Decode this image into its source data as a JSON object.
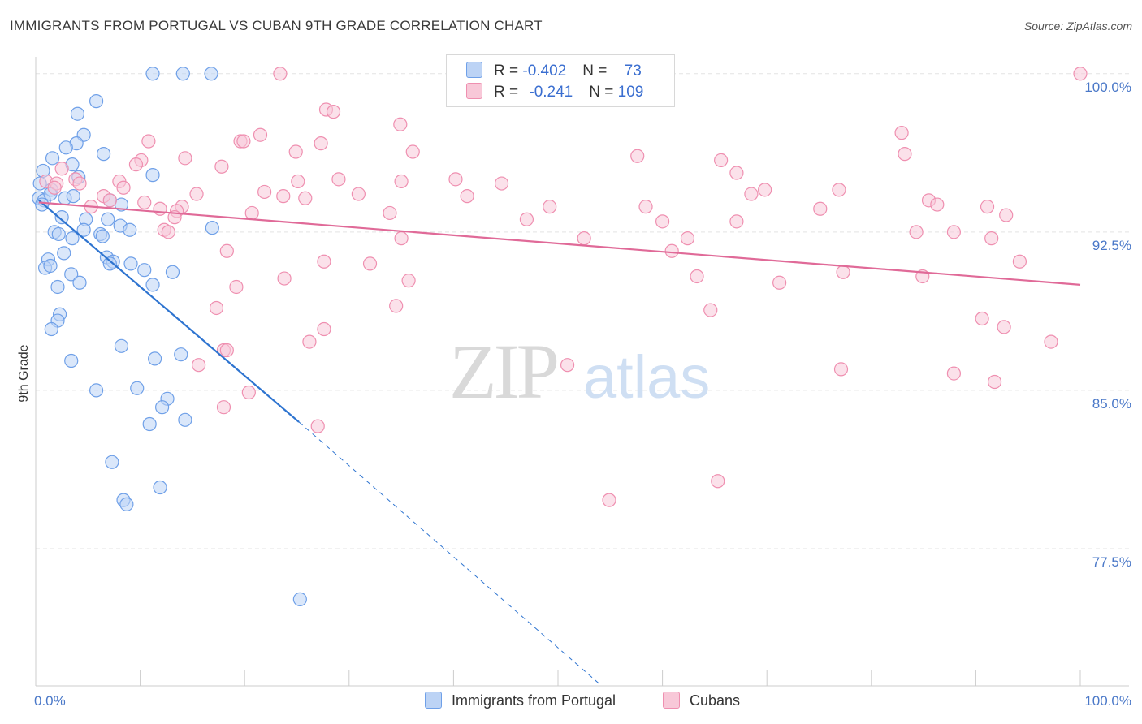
{
  "header": {
    "title": "IMMIGRANTS FROM PORTUGAL VS CUBAN 9TH GRADE CORRELATION CHART",
    "source": "Source: ZipAtlas.com"
  },
  "watermark": {
    "zip": "ZIP",
    "atlas": "atlas"
  },
  "legend": {
    "rows": [
      {
        "r_label": "R = ",
        "r_value": "-0.402",
        "n_label": "N = ",
        "n_value": "73",
        "color": "#6fa0e8",
        "fill": "#bcd3f5"
      },
      {
        "r_label": "R = ",
        "r_value": "-0.241",
        "n_label": "N = ",
        "n_value": "109",
        "color": "#ef8fb0",
        "fill": "#f8c8d8"
      }
    ]
  },
  "bottom_legend": [
    {
      "label": "Immigrants from Portugal",
      "fill": "#bcd3f5",
      "stroke": "#6fa0e8"
    },
    {
      "label": "Cubans",
      "fill": "#f8c8d8",
      "stroke": "#ef8fb0"
    }
  ],
  "chart_data": {
    "type": "scatter",
    "title": "IMMIGRANTS FROM PORTUGAL VS CUBAN 9TH GRADE CORRELATION CHART",
    "xlabel": "",
    "ylabel": "9th Grade",
    "xlim": [
      0,
      100
    ],
    "ylim": [
      71.0,
      100.8
    ],
    "x_tick_labels": [
      "0.0%",
      "100.0%"
    ],
    "y_ticks": [
      77.5,
      85.0,
      92.5,
      100.0
    ],
    "y_tick_labels": [
      "77.5%",
      "85.0%",
      "92.5%",
      "100.0%"
    ],
    "grid": true,
    "series": [
      {
        "name": "Immigrants from Portugal",
        "color": "#6fa0e8",
        "fill": "#bcd3f5",
        "trend": {
          "x0": 0.3,
          "y0": 94.0,
          "x1": 25.2,
          "y1": 83.5,
          "dash_x1": 56.5,
          "dash_y1": 70.0
        },
        "points": [
          [
            11.2,
            100.0
          ],
          [
            14.1,
            100.0
          ],
          [
            16.8,
            100.0
          ],
          [
            5.8,
            98.7
          ],
          [
            4.0,
            98.1
          ],
          [
            4.6,
            97.1
          ],
          [
            3.9,
            96.7
          ],
          [
            2.9,
            96.5
          ],
          [
            6.5,
            96.2
          ],
          [
            1.6,
            96.0
          ],
          [
            3.5,
            95.7
          ],
          [
            0.7,
            95.4
          ],
          [
            4.1,
            95.1
          ],
          [
            11.2,
            95.2
          ],
          [
            0.4,
            94.8
          ],
          [
            1.5,
            94.5
          ],
          [
            0.3,
            94.1
          ],
          [
            0.8,
            94.0
          ],
          [
            1.4,
            94.3
          ],
          [
            2.8,
            94.1
          ],
          [
            3.6,
            94.2
          ],
          [
            7.1,
            94.0
          ],
          [
            8.2,
            93.8
          ],
          [
            0.6,
            93.8
          ],
          [
            2.5,
            93.2
          ],
          [
            4.8,
            93.1
          ],
          [
            6.9,
            93.1
          ],
          [
            8.1,
            92.8
          ],
          [
            9.0,
            92.6
          ],
          [
            4.6,
            92.6
          ],
          [
            1.8,
            92.5
          ],
          [
            2.2,
            92.4
          ],
          [
            6.2,
            92.4
          ],
          [
            3.5,
            92.2
          ],
          [
            6.4,
            92.3
          ],
          [
            16.9,
            92.7
          ],
          [
            2.7,
            91.5
          ],
          [
            6.8,
            91.3
          ],
          [
            7.4,
            91.1
          ],
          [
            1.2,
            91.2
          ],
          [
            7.1,
            91.0
          ],
          [
            9.1,
            91.0
          ],
          [
            0.9,
            90.8
          ],
          [
            1.4,
            90.9
          ],
          [
            10.4,
            90.7
          ],
          [
            13.1,
            90.6
          ],
          [
            3.4,
            90.5
          ],
          [
            4.2,
            90.1
          ],
          [
            11.2,
            90.0
          ],
          [
            2.1,
            89.9
          ],
          [
            2.3,
            88.6
          ],
          [
            2.1,
            88.3
          ],
          [
            1.5,
            87.9
          ],
          [
            8.2,
            87.1
          ],
          [
            3.4,
            86.4
          ],
          [
            11.4,
            86.5
          ],
          [
            13.9,
            86.7
          ],
          [
            5.8,
            85.0
          ],
          [
            9.7,
            85.1
          ],
          [
            12.6,
            84.6
          ],
          [
            12.1,
            84.2
          ],
          [
            14.3,
            83.6
          ],
          [
            10.9,
            83.4
          ],
          [
            7.3,
            81.6
          ],
          [
            11.9,
            80.4
          ],
          [
            8.4,
            79.8
          ],
          [
            8.7,
            79.6
          ],
          [
            25.3,
            75.1
          ]
        ]
      },
      {
        "name": "Cubans",
        "color": "#ef8fb0",
        "fill": "#f8c8d8",
        "trend": {
          "x0": 0.3,
          "y0": 93.9,
          "x1": 100.0,
          "y1": 90.0
        },
        "points": [
          [
            23.4,
            100.0
          ],
          [
            100.0,
            100.0
          ],
          [
            27.8,
            98.3
          ],
          [
            28.5,
            98.2
          ],
          [
            34.9,
            97.6
          ],
          [
            82.9,
            97.2
          ],
          [
            21.5,
            97.1
          ],
          [
            10.8,
            96.8
          ],
          [
            19.6,
            96.8
          ],
          [
            19.9,
            96.8
          ],
          [
            27.3,
            96.7
          ],
          [
            24.9,
            96.3
          ],
          [
            36.1,
            96.3
          ],
          [
            83.2,
            96.2
          ],
          [
            14.3,
            96.0
          ],
          [
            10.1,
            95.9
          ],
          [
            9.6,
            95.7
          ],
          [
            17.8,
            95.6
          ],
          [
            57.6,
            96.1
          ],
          [
            65.6,
            95.9
          ],
          [
            2.5,
            95.5
          ],
          [
            29.0,
            95.0
          ],
          [
            40.2,
            95.0
          ],
          [
            67.1,
            95.3
          ],
          [
            3.8,
            95.0
          ],
          [
            1.0,
            94.9
          ],
          [
            8.0,
            94.9
          ],
          [
            8.4,
            94.6
          ],
          [
            25.1,
            94.9
          ],
          [
            35.0,
            94.9
          ],
          [
            44.6,
            94.8
          ],
          [
            2.0,
            94.8
          ],
          [
            4.2,
            94.8
          ],
          [
            1.8,
            94.6
          ],
          [
            21.9,
            94.4
          ],
          [
            30.9,
            94.3
          ],
          [
            68.5,
            94.3
          ],
          [
            69.8,
            94.5
          ],
          [
            76.9,
            94.5
          ],
          [
            15.4,
            94.3
          ],
          [
            23.7,
            94.2
          ],
          [
            41.3,
            94.2
          ],
          [
            25.8,
            94.1
          ],
          [
            85.5,
            94.0
          ],
          [
            6.5,
            94.2
          ],
          [
            10.4,
            93.9
          ],
          [
            7.1,
            94.0
          ],
          [
            5.3,
            93.7
          ],
          [
            14.0,
            93.7
          ],
          [
            13.5,
            93.5
          ],
          [
            86.3,
            93.8
          ],
          [
            49.2,
            93.7
          ],
          [
            58.4,
            93.7
          ],
          [
            75.1,
            93.6
          ],
          [
            11.9,
            93.6
          ],
          [
            20.7,
            93.4
          ],
          [
            33.9,
            93.4
          ],
          [
            91.1,
            93.7
          ],
          [
            92.9,
            93.3
          ],
          [
            47.0,
            93.1
          ],
          [
            60.0,
            93.0
          ],
          [
            67.1,
            93.0
          ],
          [
            13.3,
            93.2
          ],
          [
            12.3,
            92.6
          ],
          [
            12.7,
            92.5
          ],
          [
            84.3,
            92.5
          ],
          [
            87.9,
            92.5
          ],
          [
            35.0,
            92.2
          ],
          [
            91.5,
            92.2
          ],
          [
            52.5,
            92.2
          ],
          [
            62.4,
            92.2
          ],
          [
            18.3,
            91.6
          ],
          [
            60.9,
            91.6
          ],
          [
            27.6,
            91.1
          ],
          [
            32.0,
            91.0
          ],
          [
            94.2,
            91.1
          ],
          [
            77.3,
            90.6
          ],
          [
            63.3,
            90.4
          ],
          [
            84.9,
            90.4
          ],
          [
            23.8,
            90.3
          ],
          [
            35.7,
            90.2
          ],
          [
            71.2,
            90.1
          ],
          [
            19.2,
            89.9
          ],
          [
            34.5,
            89.0
          ],
          [
            17.3,
            88.9
          ],
          [
            64.6,
            88.8
          ],
          [
            90.6,
            88.4
          ],
          [
            92.7,
            88.0
          ],
          [
            27.6,
            87.9
          ],
          [
            26.2,
            87.3
          ],
          [
            97.2,
            87.3
          ],
          [
            18.0,
            86.9
          ],
          [
            18.3,
            86.9
          ],
          [
            15.6,
            86.2
          ],
          [
            50.9,
            86.2
          ],
          [
            77.1,
            86.0
          ],
          [
            87.9,
            85.8
          ],
          [
            91.8,
            85.4
          ],
          [
            18.0,
            84.2
          ],
          [
            20.4,
            84.9
          ],
          [
            27.0,
            83.3
          ],
          [
            65.3,
            80.7
          ],
          [
            54.9,
            79.8
          ]
        ]
      }
    ]
  }
}
